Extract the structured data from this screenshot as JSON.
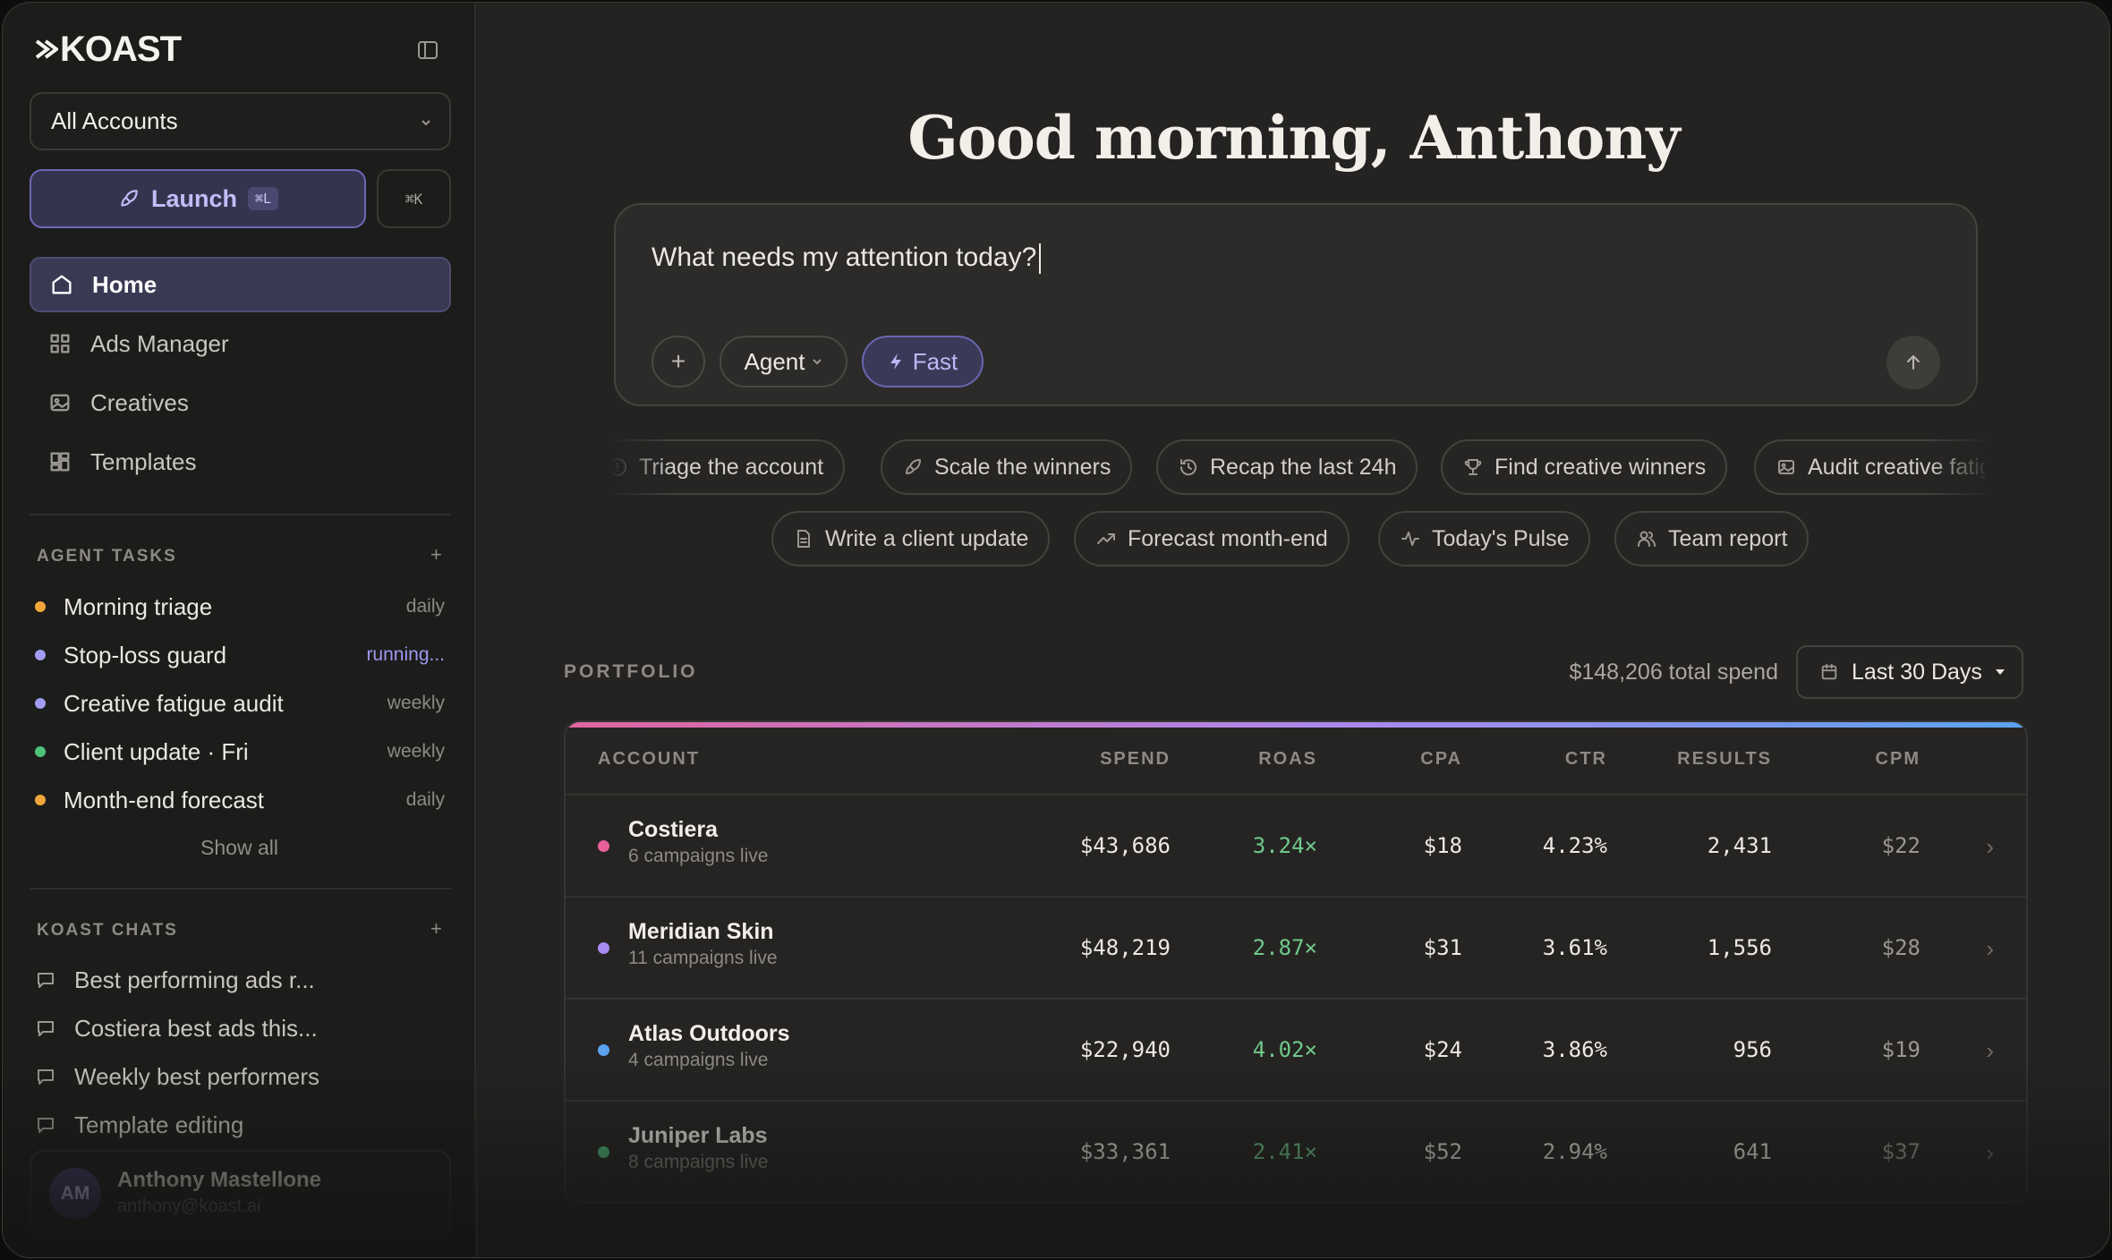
{
  "app": {
    "logo": "KOAST"
  },
  "sidebar": {
    "account_select": "All Accounts",
    "launch_label": "Launch",
    "launch_shortcut": "⌘L",
    "cmdk_label": "⌘K",
    "nav": [
      {
        "label": "Home",
        "icon": "home-icon",
        "active": true
      },
      {
        "label": "Ads Manager",
        "icon": "grid-icon"
      },
      {
        "label": "Creatives",
        "icon": "image-icon"
      },
      {
        "label": "Templates",
        "icon": "layout-icon"
      }
    ],
    "agent_tasks_title": "AGENT TASKS",
    "tasks": [
      {
        "name": "Morning triage",
        "freq": "daily",
        "color": "#f0a63a"
      },
      {
        "name": "Stop-loss guard",
        "freq": "running...",
        "color": "#a29cf2"
      },
      {
        "name": "Creative fatigue audit",
        "freq": "weekly",
        "color": "#a29cf2"
      },
      {
        "name": "Client update · Fri",
        "freq": "weekly",
        "color": "#4fc27a"
      },
      {
        "name": "Month-end forecast",
        "freq": "daily",
        "color": "#f0a63a"
      }
    ],
    "show_all": "Show all",
    "chats_title": "KOAST CHATS",
    "chats": [
      "Best performing ads r...",
      "Costiera best ads this...",
      "Weekly best performers",
      "Template editing"
    ],
    "user": {
      "initials": "AM",
      "name": "Anthony Mastellone",
      "email": "anthony@koast.ai"
    }
  },
  "main": {
    "greeting": "Good morning, Anthony",
    "prompt_text": "What needs my attention today?",
    "agent_label": "Agent",
    "fast_label": "Fast",
    "chips_row1": [
      {
        "label": "Triage the account",
        "icon": "alert-icon"
      },
      {
        "label": "Scale the winners",
        "icon": "rocket-icon"
      },
      {
        "label": "Recap the last 24h",
        "icon": "history-icon"
      },
      {
        "label": "Find creative winners",
        "icon": "trophy-icon"
      },
      {
        "label": "Audit creative fatigu",
        "icon": "image-icon"
      }
    ],
    "chips_row2": [
      {
        "label": "Write a client update",
        "icon": "document-icon"
      },
      {
        "label": "Forecast month-end",
        "icon": "trend-icon"
      },
      {
        "label": "Today's Pulse",
        "icon": "pulse-icon"
      },
      {
        "label": "Team report",
        "icon": "users-icon"
      }
    ],
    "portfolio_title": "PORTFOLIO",
    "total_spend": "$148,206 total spend",
    "date_range": "Last 30 Days",
    "table": {
      "headers": [
        "ACCOUNT",
        "SPEND",
        "ROAS",
        "CPA",
        "CTR",
        "RESULTS",
        "CPM"
      ],
      "rows": [
        {
          "name": "Costiera",
          "sub": "6 campaigns live",
          "dot": "#e8609a",
          "spend": "$43,686",
          "roas": "3.24×",
          "cpa": "$18",
          "ctr": "4.23%",
          "results": "2,431",
          "cpm": "$22"
        },
        {
          "name": "Meridian Skin",
          "sub": "11 campaigns live",
          "dot": "#a88af0",
          "spend": "$48,219",
          "roas": "2.87×",
          "cpa": "$31",
          "ctr": "3.61%",
          "results": "1,556",
          "cpm": "$28"
        },
        {
          "name": "Atlas Outdoors",
          "sub": "4 campaigns live",
          "dot": "#5aa2f0",
          "spend": "$22,940",
          "roas": "4.02×",
          "cpa": "$24",
          "ctr": "3.86%",
          "results": "956",
          "cpm": "$19"
        },
        {
          "name": "Juniper Labs",
          "sub": "8 campaigns live",
          "dot": "#4fc27a",
          "spend": "$33,361",
          "roas": "2.41×",
          "cpa": "$52",
          "ctr": "2.94%",
          "results": "641",
          "cpm": "$37"
        }
      ]
    }
  }
}
